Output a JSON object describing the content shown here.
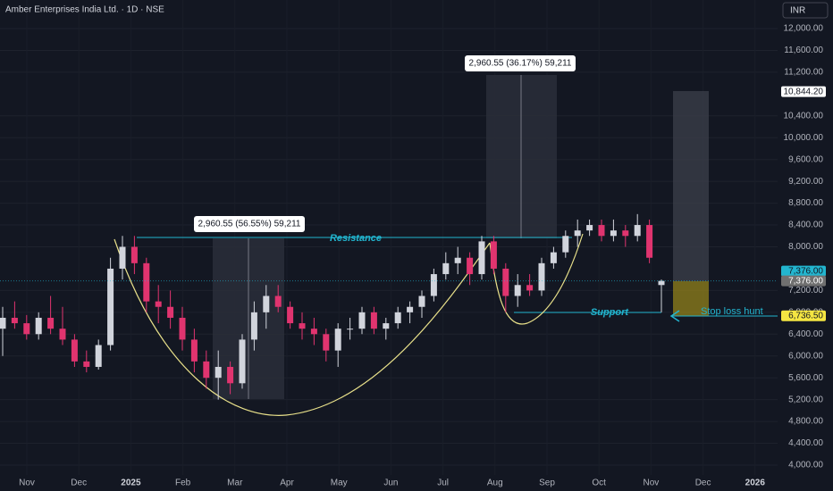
{
  "chart_data": {
    "type": "candlestick",
    "title": "Amber Enterprises India Ltd. · 1D · NSE",
    "currency": "INR",
    "up_color": "#d1d4dc",
    "down_color": "#e0346f",
    "x_labels": [
      "Nov",
      "Dec",
      "2025",
      "Feb",
      "Mar",
      "Apr",
      "May",
      "Jun",
      "Jul",
      "Aug",
      "Sep",
      "Oct",
      "Nov",
      "Dec",
      "2026"
    ],
    "open": [
      6500,
      6700,
      6600,
      6400,
      6700,
      6500,
      6300,
      5900,
      5800,
      6200,
      7600,
      8000,
      7700,
      7000,
      6900,
      6700,
      6300,
      5900,
      5600,
      5800,
      5500,
      6300,
      6800,
      7100,
      6900,
      6600,
      6500,
      6400,
      6100,
      6500,
      6500,
      6800,
      6500,
      6600,
      6800,
      6900,
      7100,
      7500,
      7700,
      7800,
      7500,
      8100,
      7600,
      7100,
      7300,
      7200,
      7700,
      7900,
      8200,
      8300,
      8400,
      8200,
      8300,
      8200,
      8400,
      7300
    ],
    "high": [
      6900,
      7000,
      6750,
      6800,
      7100,
      6900,
      6400,
      6100,
      6300,
      7800,
      8200,
      8200,
      7800,
      7300,
      7200,
      6900,
      6500,
      6100,
      6100,
      5900,
      6400,
      7000,
      7300,
      7300,
      7000,
      6800,
      6700,
      6500,
      6600,
      6700,
      6900,
      6900,
      6700,
      6900,
      7000,
      7200,
      7600,
      7900,
      8000,
      7900,
      8200,
      8200,
      7700,
      7500,
      7500,
      7800,
      8000,
      8300,
      8500,
      8500,
      8500,
      8500,
      8400,
      8600,
      8500,
      7400
    ],
    "low": [
      6000,
      6500,
      6300,
      6300,
      6400,
      6200,
      5800,
      5700,
      5750,
      6100,
      7400,
      7500,
      6800,
      6600,
      6500,
      6100,
      5700,
      5400,
      5200,
      5300,
      5400,
      6100,
      6500,
      6800,
      6500,
      6300,
      6200,
      5900,
      5800,
      6300,
      6400,
      6400,
      6300,
      6500,
      6600,
      6700,
      7000,
      7400,
      7500,
      7300,
      7400,
      7500,
      6800,
      6900,
      7100,
      7100,
      7600,
      7800,
      8000,
      8200,
      8100,
      8100,
      8000,
      8100,
      7700,
      6800
    ],
    "close": [
      6700,
      6600,
      6400,
      6700,
      6500,
      6300,
      5900,
      5800,
      6200,
      7600,
      8000,
      7700,
      7000,
      6900,
      6700,
      6300,
      5900,
      5600,
      5800,
      5500,
      6300,
      6800,
      7100,
      6900,
      6600,
      6500,
      6400,
      6100,
      6500,
      6500,
      6800,
      6500,
      6600,
      6800,
      6900,
      7100,
      7500,
      7700,
      7800,
      7500,
      8100,
      7600,
      7100,
      7300,
      7200,
      7700,
      7900,
      8200,
      8300,
      8400,
      8200,
      8300,
      8200,
      8400,
      7800,
      7376
    ],
    "ylim": [
      4000,
      12000
    ],
    "yticks": [
      {
        "value": 4000,
        "label": "4,000.00"
      },
      {
        "value": 4400,
        "label": "4,400.00"
      },
      {
        "value": 4800,
        "label": "4,800.00"
      },
      {
        "value": 5200,
        "label": "5,200.00"
      },
      {
        "value": 5600,
        "label": "5,600.00"
      },
      {
        "value": 6000,
        "label": "6,000.00"
      },
      {
        "value": 6400,
        "label": "6,400.00"
      },
      {
        "value": 6800,
        "label": "6,800.00"
      },
      {
        "value": 7200,
        "label": "7,200.00"
      },
      {
        "value": 8000,
        "label": "8,000.00"
      },
      {
        "value": 8400,
        "label": "8,400.00"
      },
      {
        "value": 8800,
        "label": "8,800.00"
      },
      {
        "value": 9200,
        "label": "9,200.00"
      },
      {
        "value": 9600,
        "label": "9,600.00"
      },
      {
        "value": 10000,
        "label": "10,000.00"
      },
      {
        "value": 10400,
        "label": "10,400.00"
      },
      {
        "value": 11200,
        "label": "11,200.00"
      },
      {
        "value": 11600,
        "label": "11,600.00"
      },
      {
        "value": 12000,
        "label": "12,000.00"
      }
    ],
    "price_tags": [
      {
        "value": 10844.2,
        "label": "10,844.20",
        "bg": "#ffffff",
        "fg": "#131722"
      },
      {
        "value": 7376,
        "label": "7,376.00",
        "bg": "#22b5cf",
        "fg": "#131722"
      },
      {
        "value": 7376,
        "label": "7,376.00",
        "bg": "#707070",
        "fg": "#ffffff"
      },
      {
        "value": 6736.5,
        "label": "6,736.50",
        "bg": "#f5e642",
        "fg": "#131722"
      }
    ],
    "annotations": {
      "resistance": "Resistance",
      "support": "Support",
      "stop_loss": "Stop loss hunt",
      "measure_1": "2,960.55 (56.55%) 59,211",
      "measure_2": "2,960.55 (36.17%) 59,211"
    }
  }
}
